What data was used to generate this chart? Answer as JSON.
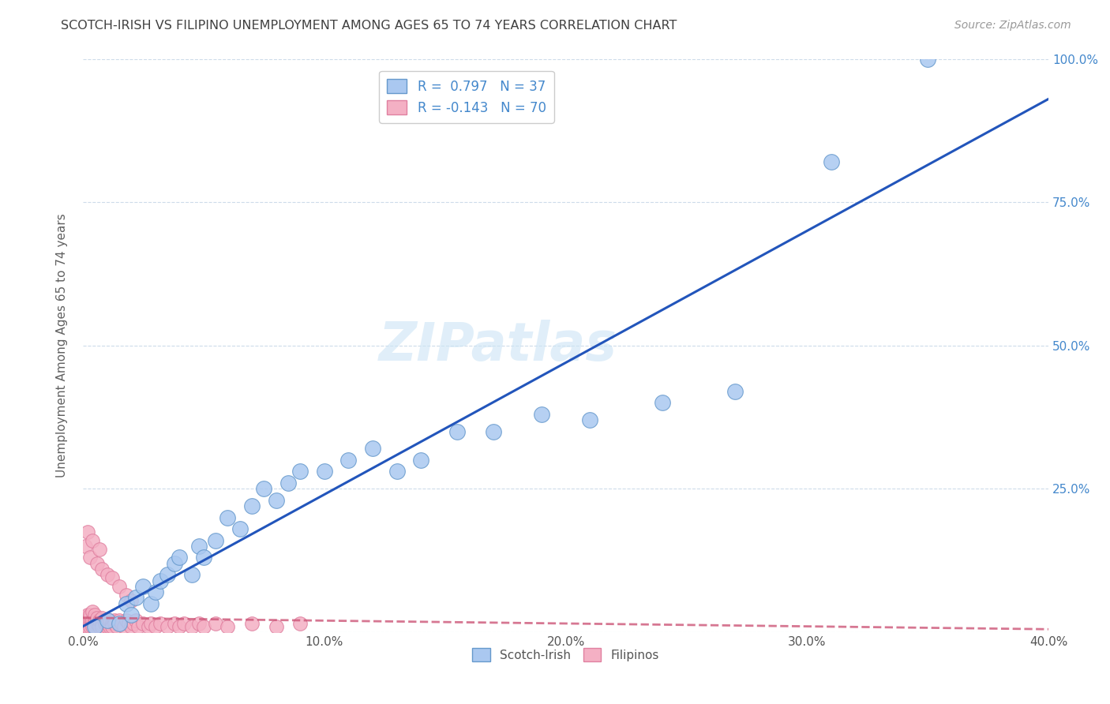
{
  "title": "SCOTCH-IRISH VS FILIPINO UNEMPLOYMENT AMONG AGES 65 TO 74 YEARS CORRELATION CHART",
  "source": "Source: ZipAtlas.com",
  "ylabel": "Unemployment Among Ages 65 to 74 years",
  "xlim": [
    0.0,
    0.4
  ],
  "ylim": [
    0.0,
    1.0
  ],
  "xticks": [
    0.0,
    0.1,
    0.2,
    0.3,
    0.4
  ],
  "yticks": [
    0.0,
    0.25,
    0.5,
    0.75,
    1.0
  ],
  "xticklabels": [
    "0.0%",
    "10.0%",
    "20.0%",
    "30.0%",
    "40.0%"
  ],
  "yticklabels": [
    "",
    "25.0%",
    "50.0%",
    "75.0%",
    "100.0%"
  ],
  "scotch_irish_color": "#aac8f0",
  "filipino_color": "#f4b0c4",
  "scotch_irish_edge": "#6699cc",
  "filipino_edge": "#e080a0",
  "regression_blue": "#2255bb",
  "regression_pink": "#cc5577",
  "R_scotch": 0.797,
  "N_scotch": 37,
  "R_filipino": -0.143,
  "N_filipino": 70,
  "scotch_irish_x": [
    0.005,
    0.01,
    0.015,
    0.018,
    0.02,
    0.022,
    0.025,
    0.028,
    0.03,
    0.032,
    0.035,
    0.038,
    0.04,
    0.045,
    0.048,
    0.05,
    0.055,
    0.06,
    0.065,
    0.07,
    0.075,
    0.08,
    0.085,
    0.09,
    0.1,
    0.11,
    0.12,
    0.13,
    0.14,
    0.155,
    0.17,
    0.19,
    0.21,
    0.24,
    0.27,
    0.31,
    0.35
  ],
  "scotch_irish_y": [
    0.01,
    0.02,
    0.015,
    0.05,
    0.03,
    0.06,
    0.08,
    0.05,
    0.07,
    0.09,
    0.1,
    0.12,
    0.13,
    0.1,
    0.15,
    0.13,
    0.16,
    0.2,
    0.18,
    0.22,
    0.25,
    0.23,
    0.26,
    0.28,
    0.28,
    0.3,
    0.32,
    0.28,
    0.3,
    0.35,
    0.35,
    0.38,
    0.37,
    0.4,
    0.42,
    0.82,
    1.0
  ],
  "filipino_x": [
    0.0,
    0.0,
    0.001,
    0.001,
    0.001,
    0.002,
    0.002,
    0.002,
    0.002,
    0.003,
    0.003,
    0.003,
    0.003,
    0.004,
    0.004,
    0.004,
    0.004,
    0.005,
    0.005,
    0.005,
    0.005,
    0.005,
    0.006,
    0.006,
    0.006,
    0.007,
    0.007,
    0.007,
    0.008,
    0.008,
    0.008,
    0.009,
    0.009,
    0.01,
    0.01,
    0.01,
    0.011,
    0.011,
    0.012,
    0.012,
    0.013,
    0.013,
    0.014,
    0.015,
    0.015,
    0.016,
    0.017,
    0.018,
    0.019,
    0.02,
    0.021,
    0.022,
    0.023,
    0.025,
    0.027,
    0.028,
    0.03,
    0.032,
    0.035,
    0.038,
    0.04,
    0.042,
    0.045,
    0.048,
    0.05,
    0.055,
    0.06,
    0.07,
    0.08,
    0.09
  ],
  "filipino_y": [
    0.01,
    0.015,
    0.02,
    0.01,
    0.025,
    0.015,
    0.03,
    0.01,
    0.02,
    0.015,
    0.025,
    0.01,
    0.03,
    0.015,
    0.02,
    0.01,
    0.035,
    0.02,
    0.015,
    0.025,
    0.01,
    0.03,
    0.015,
    0.02,
    0.025,
    0.015,
    0.01,
    0.02,
    0.015,
    0.025,
    0.01,
    0.02,
    0.015,
    0.01,
    0.02,
    0.015,
    0.01,
    0.02,
    0.015,
    0.01,
    0.02,
    0.015,
    0.01,
    0.015,
    0.02,
    0.015,
    0.01,
    0.02,
    0.015,
    0.01,
    0.015,
    0.02,
    0.01,
    0.015,
    0.01,
    0.015,
    0.01,
    0.015,
    0.01,
    0.015,
    0.01,
    0.015,
    0.01,
    0.015,
    0.01,
    0.015,
    0.01,
    0.015,
    0.01,
    0.015
  ],
  "filipino_outliers_x": [
    0.001,
    0.002,
    0.003,
    0.004,
    0.006,
    0.007,
    0.008,
    0.01,
    0.012,
    0.015,
    0.018,
    0.02
  ],
  "filipino_outliers_y": [
    0.15,
    0.175,
    0.13,
    0.16,
    0.12,
    0.145,
    0.11,
    0.1,
    0.095,
    0.08,
    0.065,
    0.055
  ],
  "watermark": "ZIPatlas",
  "background_color": "#ffffff",
  "grid_color": "#c8d8e8",
  "title_color": "#404040",
  "axis_label_color": "#606060",
  "tick_color_blue": "#4488cc",
  "tick_color_dark": "#555555"
}
